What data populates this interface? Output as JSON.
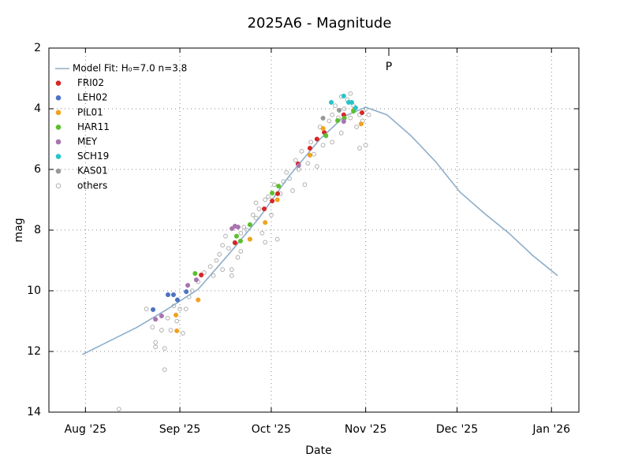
{
  "chart_data": {
    "type": "scatter",
    "title": "2025A6 - Magnitude",
    "x_label": "Date",
    "y_label": "mag",
    "xlim": [
      201,
      375
    ],
    "xticks": [
      {
        "value": 213,
        "label": "Aug '25"
      },
      {
        "value": 244,
        "label": "Sep '25"
      },
      {
        "value": 274,
        "label": "Oct '25"
      },
      {
        "value": 305,
        "label": "Nov '25"
      },
      {
        "value": 335,
        "label": "Dec '25"
      },
      {
        "value": 366,
        "label": "Jan '26"
      }
    ],
    "ylim": [
      2,
      14
    ],
    "yticks": [
      2,
      4,
      6,
      8,
      10,
      12,
      14
    ],
    "y_inverted": true,
    "grid": true,
    "legend": "upper-left",
    "annotations": [
      {
        "text": "P",
        "x": 312.6
      }
    ],
    "series": [
      {
        "name": "Model Fit: H₀=7.0 n=3.8",
        "type": "line",
        "color": "#8eadc9",
        "x": [
          212,
          220,
          230,
          240,
          250,
          260,
          270,
          280,
          290,
          298,
          305,
          312,
          320,
          328,
          336,
          344,
          352,
          360,
          368
        ],
        "values": [
          12.1,
          11.7,
          11.2,
          10.6,
          9.95,
          8.8,
          7.6,
          6.2,
          5.0,
          4.25,
          3.95,
          4.2,
          4.9,
          5.75,
          6.75,
          7.45,
          8.1,
          8.85,
          9.5
        ]
      },
      {
        "name": "FRI02",
        "type": "scatter",
        "color": "#d62728",
        "x": [
          251,
          262.1,
          271.7,
          274.3,
          276.1,
          282.8,
          286.7,
          289,
          291.4,
          297.8,
          303.8
        ],
        "values": [
          9.48,
          8.42,
          7.3,
          7.04,
          6.8,
          5.82,
          5.3,
          5.0,
          4.78,
          4.2,
          4.13
        ]
      },
      {
        "name": "LEH02",
        "type": "scatter",
        "color": "#4e73c4",
        "x": [
          235.2,
          240.1,
          241.9,
          243.2,
          246.1
        ],
        "values": [
          10.62,
          10.13,
          10.13,
          10.3,
          10.03
        ]
      },
      {
        "name": "PIL01",
        "type": "scatter",
        "color": "#f0a21e",
        "x": [
          243,
          242.7,
          250,
          267,
          272,
          276,
          286.7,
          291,
          301,
          303.5
        ],
        "values": [
          11.32,
          10.8,
          10.3,
          8.3,
          7.75,
          7.0,
          5.53,
          4.65,
          4.05,
          4.5
        ]
      },
      {
        "name": "HAR11",
        "type": "scatter",
        "color": "#5cbf2c",
        "x": [
          249,
          262.6,
          263.9,
          267,
          274.3,
          276.4,
          291.9,
          295.8,
          298,
          301
        ],
        "values": [
          9.43,
          8.2,
          8.36,
          7.82,
          6.78,
          6.55,
          4.88,
          4.39,
          4.31,
          4.08
        ]
      },
      {
        "name": "MEY",
        "type": "scatter",
        "color": "#a974b0",
        "x": [
          236,
          238,
          246.6,
          249.4,
          261.1,
          262.1,
          263.1,
          283,
          297.8
        ],
        "values": [
          10.94,
          10.83,
          9.82,
          9.64,
          7.95,
          7.87,
          7.9,
          5.87,
          4.42
        ]
      },
      {
        "name": "SCH19",
        "type": "scatter",
        "color": "#27c4c9",
        "x": [
          293.7,
          297.8,
          299.4,
          300.4,
          301.7
        ],
        "values": [
          3.79,
          3.58,
          3.79,
          3.79,
          3.97
        ]
      },
      {
        "name": "KAS01",
        "type": "scatter",
        "color": "#999999",
        "x": [
          296.3,
          291
        ],
        "values": [
          4.05,
          4.31
        ]
      },
      {
        "name": "others",
        "type": "scatter",
        "color": "#b0b0b0",
        "hollow": true,
        "x": [
          224,
          233,
          235,
          236,
          236,
          238,
          239,
          239,
          240,
          241,
          242,
          243,
          244,
          245,
          246,
          247,
          248,
          250,
          252,
          254,
          255,
          256,
          257,
          258,
          258,
          259,
          260,
          261,
          261,
          262,
          263,
          264,
          264,
          265,
          266,
          267,
          268,
          269,
          269,
          270,
          271,
          272,
          272,
          273,
          274,
          275,
          276,
          277,
          278,
          279,
          280,
          281,
          282,
          283,
          284,
          285,
          286,
          287,
          288,
          289,
          290,
          291,
          292,
          293,
          294,
          294,
          295,
          296,
          297,
          297,
          298,
          299,
          300,
          300,
          301,
          302,
          303,
          303,
          304,
          305,
          305,
          306
        ],
        "values": [
          13.9,
          10.6,
          11.2,
          11.7,
          11.85,
          11.3,
          11.9,
          12.6,
          10.9,
          11.3,
          10.5,
          11.0,
          10.6,
          11.4,
          10.6,
          10.2,
          10.0,
          9.7,
          9.4,
          9.2,
          9.5,
          9.0,
          8.8,
          8.5,
          9.3,
          8.2,
          8.6,
          9.5,
          9.3,
          8.4,
          8.9,
          8.1,
          8.7,
          7.9,
          8.0,
          8.3,
          7.5,
          7.1,
          7.6,
          7.3,
          8.1,
          8.4,
          7.0,
          6.9,
          7.5,
          6.5,
          8.3,
          6.8,
          6.4,
          6.1,
          6.3,
          6.7,
          5.7,
          6.0,
          5.4,
          6.5,
          5.8,
          5.1,
          5.5,
          5.9,
          4.6,
          5.2,
          4.9,
          4.4,
          4.2,
          5.1,
          3.9,
          4.3,
          3.6,
          4.8,
          4.0,
          3.7,
          4.3,
          3.5,
          3.9,
          4.6,
          4.2,
          5.3,
          4.4,
          5.2,
          4.0,
          4.2
        ]
      }
    ]
  }
}
